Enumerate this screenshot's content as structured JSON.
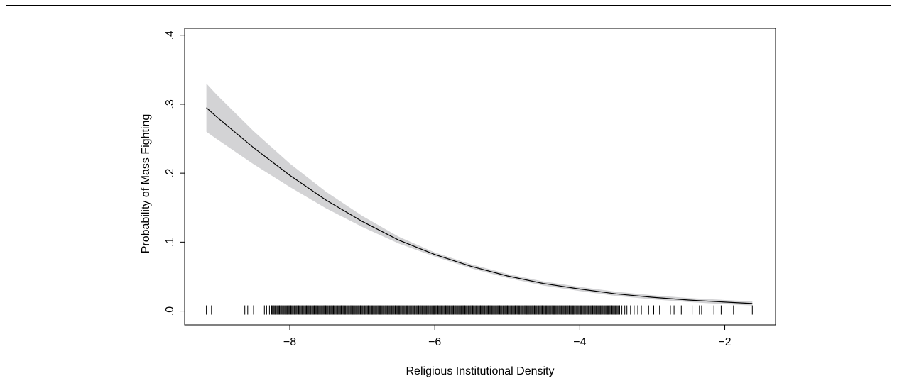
{
  "chart_data": {
    "type": "line",
    "title": "",
    "xlabel": "Religious Institutional Density",
    "ylabel": "Probability of Mass Fighting",
    "xlim": [
      -9.45,
      -1.3
    ],
    "ylim": [
      -0.02,
      0.41
    ],
    "x_ticks": [
      -8,
      -6,
      -4,
      -2
    ],
    "x_tick_labels": [
      "−8",
      "−6",
      "−4",
      "−2"
    ],
    "y_ticks": [
      0,
      0.1,
      0.2,
      0.3,
      0.4
    ],
    "y_tick_labels": [
      ".0",
      ".1",
      ".2",
      ".3",
      ".4"
    ],
    "grid": false,
    "legend": "none",
    "colors": {
      "line": "#000000",
      "band": "#d3d3d5",
      "rug": "#000000"
    },
    "series": [
      {
        "x": [
          -9.15,
          -9.0,
          -8.5,
          -8.0,
          -7.5,
          -7.0,
          -6.5,
          -6.0,
          -5.5,
          -5.0,
          -4.5,
          -4.0,
          -3.5,
          -3.0,
          -2.5,
          -2.0,
          -1.62
        ],
        "y": [
          0.295,
          0.281,
          0.237,
          0.197,
          0.161,
          0.13,
          0.103,
          0.082,
          0.065,
          0.051,
          0.04,
          0.032,
          0.025,
          0.02,
          0.016,
          0.013,
          0.011
        ],
        "lower": [
          0.26,
          0.249,
          0.213,
          0.18,
          0.149,
          0.122,
          0.098,
          0.079,
          0.062,
          0.048,
          0.037,
          0.029,
          0.022,
          0.017,
          0.013,
          0.01,
          0.008
        ],
        "upper": [
          0.33,
          0.313,
          0.261,
          0.214,
          0.173,
          0.138,
          0.108,
          0.085,
          0.068,
          0.054,
          0.043,
          0.035,
          0.028,
          0.023,
          0.019,
          0.016,
          0.014
        ]
      }
    ],
    "rug_x": {
      "isolated": [
        -9.15,
        -9.08,
        -8.62,
        -8.58,
        -8.5,
        -8.35,
        -8.32,
        -8.28,
        -3.42,
        -3.38,
        -3.35,
        -3.3,
        -3.25,
        -3.2,
        -3.15,
        -3.05,
        -2.98,
        -2.9,
        -2.75,
        -2.7,
        -2.6,
        -2.45,
        -2.35,
        -2.32,
        -2.15,
        -2.05,
        -1.88,
        -1.62
      ],
      "dense_range": [
        -8.25,
        -3.45
      ],
      "dense_step": 0.012
    }
  }
}
